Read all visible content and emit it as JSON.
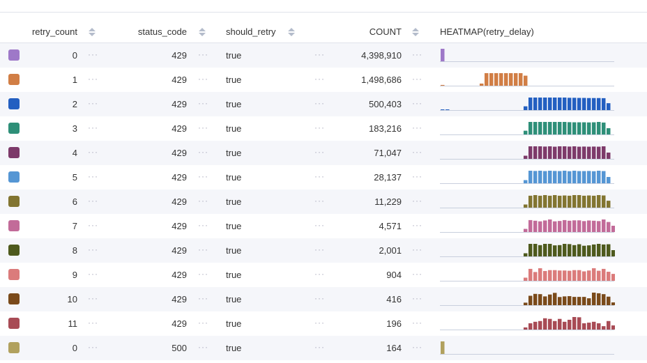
{
  "columns": [
    "retry_count",
    "status_code",
    "should_retry",
    "COUNT",
    "HEATMAP(retry_delay)"
  ],
  "rows": [
    {
      "retry_count": "0",
      "status_code": "429",
      "should_retry": "true",
      "count": "4,398,910",
      "color": "#9e78c8",
      "heatmap": {
        "0": 1
      }
    },
    {
      "retry_count": "1",
      "status_code": "429",
      "should_retry": "true",
      "count": "1,498,686",
      "color": "#d17e45",
      "heatmap": {
        "0": 0.06,
        "8": 0.17,
        "9": 1,
        "10": 1,
        "11": 1,
        "12": 1,
        "13": 1,
        "14": 1,
        "15": 1,
        "16": 1,
        "17": 0.8
      }
    },
    {
      "retry_count": "2",
      "status_code": "429",
      "should_retry": "true",
      "count": "500,403",
      "color": "#235fc1",
      "heatmap": {
        "0": 0.05,
        "1": 0.05,
        "17": 0.3,
        "18": 1,
        "19": 1,
        "20": 1,
        "21": 1,
        "22": 1,
        "23": 1,
        "24": 1,
        "25": 1,
        "26": 0.98,
        "27": 0.98,
        "28": 0.97,
        "29": 0.97,
        "30": 0.96,
        "31": 0.96,
        "32": 0.96,
        "33": 0.95,
        "34": 0.55
      }
    },
    {
      "retry_count": "3",
      "status_code": "429",
      "should_retry": "true",
      "count": "183,216",
      "color": "#2e8f78",
      "heatmap": {
        "17": 0.3,
        "18": 1,
        "19": 1,
        "20": 1,
        "21": 1,
        "22": 1,
        "23": 1,
        "24": 1,
        "25": 1,
        "26": 0.98,
        "27": 0.97,
        "28": 0.97,
        "29": 0.97,
        "30": 0.96,
        "31": 0.97,
        "32": 1,
        "33": 0.95,
        "34": 0.5
      }
    },
    {
      "retry_count": "4",
      "status_code": "429",
      "should_retry": "true",
      "count": "71,047",
      "color": "#7d3a6a",
      "heatmap": {
        "17": 0.25,
        "18": 1,
        "19": 1,
        "20": 1,
        "21": 0.98,
        "22": 1,
        "23": 0.97,
        "24": 1,
        "25": 1,
        "26": 0.98,
        "27": 1,
        "28": 0.97,
        "29": 0.98,
        "30": 0.97,
        "31": 0.98,
        "32": 0.97,
        "33": 1,
        "34": 0.5
      }
    },
    {
      "retry_count": "5",
      "status_code": "429",
      "should_retry": "true",
      "count": "28,137",
      "color": "#5596d4",
      "heatmap": {
        "17": 0.25,
        "18": 1,
        "19": 0.98,
        "20": 1,
        "21": 0.97,
        "22": 1,
        "23": 0.98,
        "24": 0.97,
        "25": 1,
        "26": 0.96,
        "27": 1,
        "28": 0.97,
        "29": 0.97,
        "30": 0.98,
        "31": 0.96,
        "32": 1,
        "33": 0.97,
        "34": 0.5
      }
    },
    {
      "retry_count": "6",
      "status_code": "429",
      "should_retry": "true",
      "count": "11,229",
      "color": "#827531",
      "heatmap": {
        "17": 0.25,
        "18": 0.95,
        "19": 1,
        "20": 0.95,
        "21": 1,
        "22": 0.95,
        "23": 1,
        "24": 0.95,
        "25": 0.97,
        "26": 0.95,
        "27": 1,
        "28": 1,
        "29": 0.95,
        "30": 0.97,
        "31": 0.95,
        "32": 1,
        "33": 0.97,
        "34": 0.55
      }
    },
    {
      "retry_count": "7",
      "status_code": "429",
      "should_retry": "true",
      "count": "4,571",
      "color": "#c26b99",
      "heatmap": {
        "17": 0.25,
        "18": 0.95,
        "19": 0.9,
        "20": 0.85,
        "21": 0.92,
        "22": 1,
        "23": 0.85,
        "24": 0.88,
        "25": 0.95,
        "26": 0.9,
        "27": 0.93,
        "28": 0.93,
        "29": 0.87,
        "30": 0.92,
        "31": 0.9,
        "32": 0.87,
        "33": 1,
        "34": 0.8,
        "35": 0.5
      }
    },
    {
      "retry_count": "8",
      "status_code": "429",
      "should_retry": "true",
      "count": "2,001",
      "color": "#4e5a1d",
      "heatmap": {
        "17": 0.25,
        "18": 1,
        "19": 1,
        "20": 0.9,
        "21": 1,
        "22": 1,
        "23": 0.88,
        "24": 0.9,
        "25": 1,
        "26": 0.98,
        "27": 0.9,
        "28": 0.97,
        "29": 0.85,
        "30": 0.88,
        "31": 0.95,
        "32": 1,
        "33": 0.95,
        "34": 0.97,
        "35": 0.5
      }
    },
    {
      "retry_count": "9",
      "status_code": "429",
      "should_retry": "true",
      "count": "904",
      "color": "#db7b7b",
      "heatmap": {
        "17": 0.25,
        "18": 0.95,
        "19": 0.7,
        "20": 1,
        "21": 0.78,
        "22": 0.85,
        "23": 0.85,
        "24": 0.82,
        "25": 0.82,
        "26": 0.8,
        "27": 0.85,
        "28": 0.85,
        "29": 0.75,
        "30": 0.82,
        "31": 1,
        "32": 0.8,
        "33": 0.95,
        "34": 0.72,
        "35": 0.55
      }
    },
    {
      "retry_count": "10",
      "status_code": "429",
      "should_retry": "true",
      "count": "416",
      "color": "#7a4a1a",
      "heatmap": {
        "17": 0.2,
        "18": 0.75,
        "19": 0.9,
        "20": 0.88,
        "21": 0.7,
        "22": 0.85,
        "23": 0.98,
        "24": 0.65,
        "25": 0.7,
        "26": 0.72,
        "27": 0.66,
        "28": 0.66,
        "29": 0.66,
        "30": 0.55,
        "31": 1,
        "32": 0.95,
        "33": 0.88,
        "34": 0.68,
        "35": 0.22
      }
    },
    {
      "retry_count": "11",
      "status_code": "429",
      "should_retry": "true",
      "count": "196",
      "color": "#a84b55",
      "heatmap": {
        "17": 0.17,
        "18": 0.5,
        "19": 0.62,
        "20": 0.68,
        "21": 0.9,
        "22": 0.85,
        "23": 0.68,
        "24": 0.85,
        "25": 0.62,
        "26": 0.78,
        "27": 1,
        "28": 0.98,
        "29": 0.5,
        "30": 0.55,
        "31": 0.62,
        "32": 0.5,
        "33": 0.27,
        "34": 0.68,
        "35": 0.33
      }
    },
    {
      "retry_count": "0",
      "status_code": "500",
      "should_retry": "true",
      "count": "164",
      "color": "#b1a15e",
      "heatmap": {
        "0": 1
      }
    }
  ],
  "icons": {
    "sort": "sort-icon",
    "more": "more-icon"
  },
  "colors": {
    "baseline": "#c8cfdd",
    "stripe": "#f5f6fa"
  }
}
